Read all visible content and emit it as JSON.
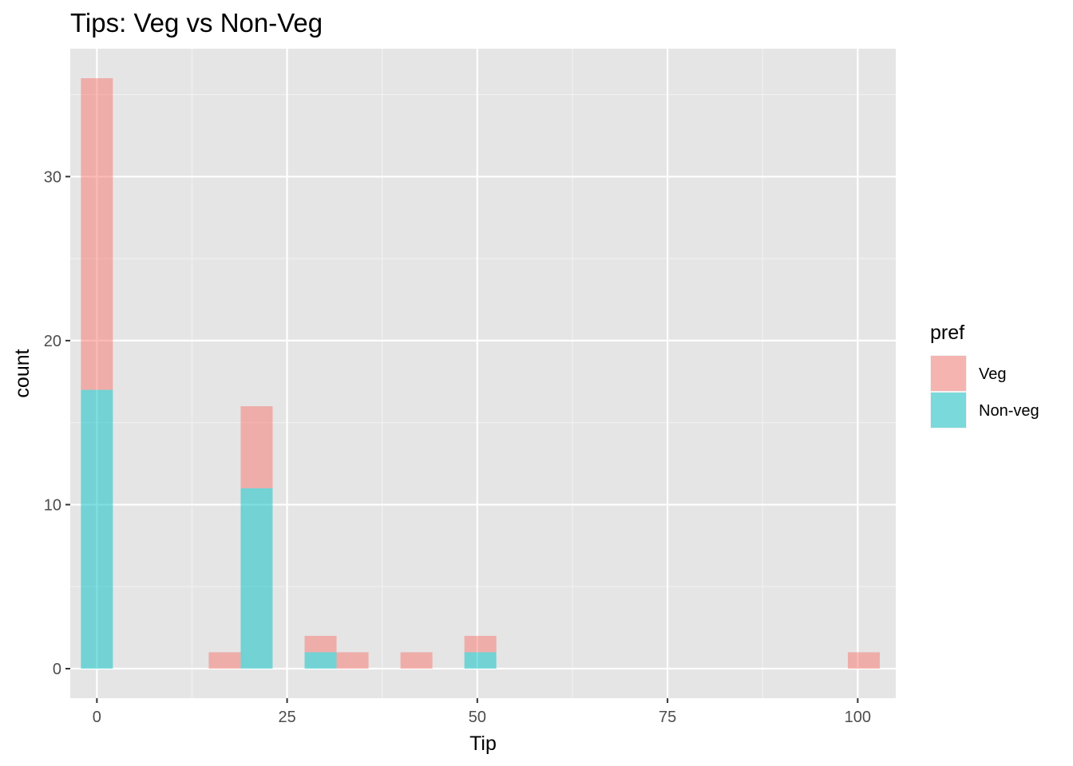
{
  "chart_data": {
    "type": "bar",
    "title": "Tips: Veg vs Non-Veg",
    "xlabel": "Tip",
    "ylabel": "count",
    "xlim": [
      -3.5,
      105
    ],
    "ylim": [
      -1.8,
      37.8
    ],
    "x_ticks": [
      0,
      25,
      50,
      75,
      100
    ],
    "y_ticks": [
      0,
      10,
      20,
      30
    ],
    "bin_width": 4.2,
    "stacked": true,
    "grid": true,
    "legend": {
      "title": "pref",
      "position": "right"
    },
    "series": [
      {
        "name": "Veg",
        "color": "#F8766D",
        "bins": [
          {
            "x": 0,
            "count": 19
          },
          {
            "x": 16.8,
            "count": 1
          },
          {
            "x": 21,
            "count": 5
          },
          {
            "x": 29.4,
            "count": 1
          },
          {
            "x": 33.6,
            "count": 1
          },
          {
            "x": 42,
            "count": 1
          },
          {
            "x": 50.4,
            "count": 1
          },
          {
            "x": 100.8,
            "count": 1
          }
        ]
      },
      {
        "name": "Non-veg",
        "color": "#00BFC4",
        "bins": [
          {
            "x": 0,
            "count": 17
          },
          {
            "x": 21,
            "count": 11
          },
          {
            "x": 29.4,
            "count": 1
          },
          {
            "x": 50.4,
            "count": 1
          }
        ]
      }
    ]
  }
}
